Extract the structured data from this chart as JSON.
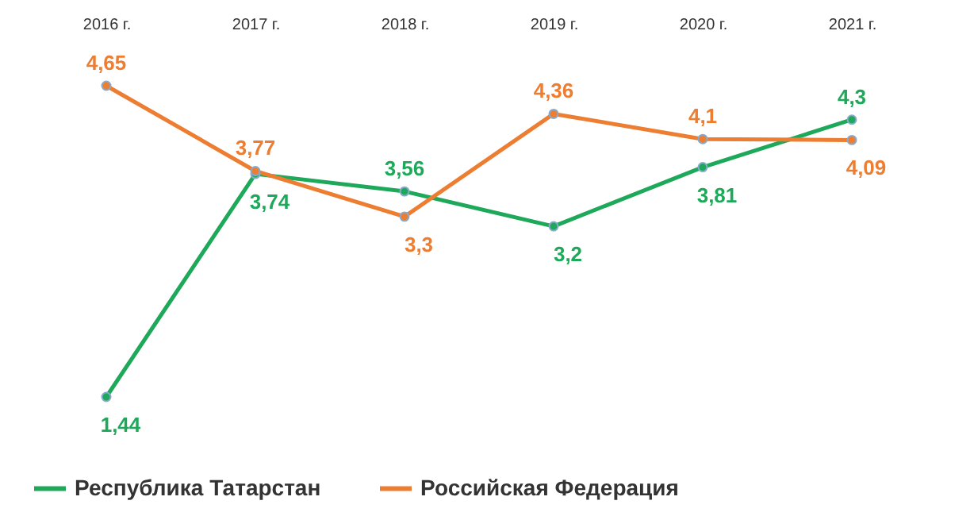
{
  "chart_data": {
    "type": "line",
    "categories": [
      "2016 г.",
      "2017 г.",
      "2018 г.",
      "2019 г.",
      "2020 г.",
      "2021 г."
    ],
    "series": [
      {
        "name": "Республика Татарстан",
        "color": "#1ea85a",
        "values": [
          1.44,
          3.74,
          3.56,
          3.2,
          3.81,
          4.3
        ],
        "value_labels": [
          "1,44",
          "3,74",
          "3,56",
          "3,2",
          "3,81",
          "4,3"
        ]
      },
      {
        "name": "Российская Федерация",
        "color": "#ed7d31",
        "values": [
          4.65,
          3.77,
          3.3,
          4.36,
          4.1,
          4.09
        ],
        "value_labels": [
          "4,65",
          "3,77",
          "3,3",
          "4,36",
          "4,1",
          "4,09"
        ]
      }
    ],
    "marker": "circle",
    "grid": false,
    "legend": "bottom"
  }
}
